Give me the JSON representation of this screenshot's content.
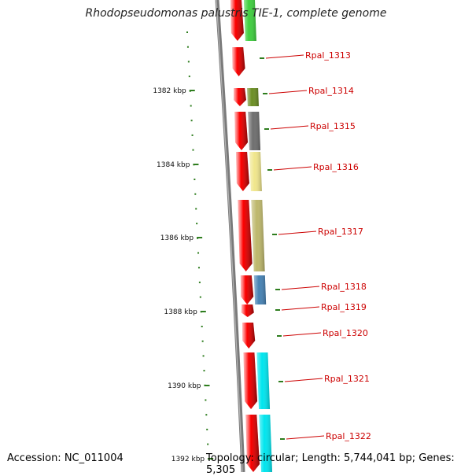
{
  "title": "Rhodopseudomonas palustris TIE-1, complete genome",
  "footer": {
    "accession": "Accession: NC_011004",
    "topology": "Topology: circular; Length: 5,744,041 bp; Genes: 5,305"
  },
  "colors": {
    "backbone": "#7a7a7a",
    "scale_ticks": "#2e7d1e",
    "gene_label": "#cc0000",
    "forward_arrow": "#ff0000"
  },
  "scale": {
    "unit": "kbp",
    "labels": [
      "1382 kbp",
      "1384 kbp",
      "1386 kbp",
      "1388 kbp",
      "1390 kbp",
      "1392 kbp"
    ]
  },
  "genes": [
    {
      "name": "",
      "color": "#3ecf3e"
    },
    {
      "name": "Rpal_1313",
      "color": ""
    },
    {
      "name": "Rpal_1314",
      "color": "#6b8e23"
    },
    {
      "name": "Rpal_1315",
      "color": "#6e6e6e"
    },
    {
      "name": "Rpal_1316",
      "color": "#f0e68c"
    },
    {
      "name": "Rpal_1317",
      "color": "#bdb76b"
    },
    {
      "name": "Rpal_1318",
      "color": "#4682b4"
    },
    {
      "name": "Rpal_1319",
      "color": ""
    },
    {
      "name": "Rpal_1320",
      "color": ""
    },
    {
      "name": "Rpal_1321",
      "color": "#00e5ee"
    },
    {
      "name": "Rpal_1322",
      "color": "#00e5ee"
    }
  ]
}
